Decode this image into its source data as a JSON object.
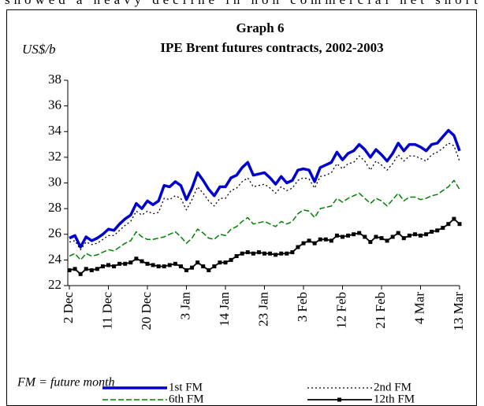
{
  "page_text": "showed a heavy decline in non commercial net short",
  "chart_data": {
    "type": "line",
    "title": "Graph 6",
    "subtitle": "IPE Brent futures contracts, 2002-2003",
    "y_axis_label": "US$/b",
    "note": "FM = future month",
    "grid": false,
    "legend": "bottom",
    "categories": [
      "2 Dec",
      null,
      null,
      null,
      null,
      null,
      null,
      "11 Dec",
      null,
      null,
      null,
      null,
      null,
      null,
      "20 Dec",
      null,
      null,
      null,
      null,
      null,
      null,
      "3 Jan",
      null,
      null,
      null,
      null,
      null,
      null,
      "14 Jan",
      null,
      null,
      null,
      null,
      null,
      null,
      "23 Jan",
      null,
      null,
      null,
      null,
      null,
      null,
      "3 Feb",
      null,
      null,
      null,
      null,
      null,
      null,
      "12 Feb",
      null,
      null,
      null,
      null,
      null,
      null,
      "21 Feb",
      null,
      null,
      null,
      null,
      null,
      null,
      "4 Mar",
      null,
      null,
      null,
      null,
      null,
      null,
      "13 Mar"
    ],
    "ylim": [
      22,
      38
    ],
    "yticks": [
      22,
      24,
      26,
      28,
      30,
      32,
      34,
      36,
      38
    ],
    "series": [
      {
        "name": "1st FM",
        "color": "#0000cc",
        "style": "solid-thick",
        "values": [
          25.7,
          25.9,
          25.0,
          25.8,
          25.5,
          25.7,
          26.0,
          26.4,
          26.3,
          26.8,
          27.2,
          27.5,
          28.4,
          28.0,
          28.6,
          28.3,
          28.6,
          29.8,
          29.7,
          30.1,
          29.8,
          28.7,
          29.6,
          30.8,
          30.2,
          29.5,
          29.0,
          29.7,
          29.7,
          30.4,
          30.6,
          31.2,
          31.6,
          30.6,
          30.7,
          30.8,
          30.4,
          29.9,
          30.5,
          30.0,
          30.2,
          31.0,
          31.1,
          31.0,
          30.1,
          31.2,
          31.4,
          31.6,
          32.4,
          31.8,
          32.3,
          32.5,
          33.0,
          32.6,
          32.0,
          32.6,
          32.2,
          31.7,
          32.3,
          33.1,
          32.5,
          33.0,
          33.0,
          32.8,
          32.5,
          33.0,
          33.1,
          33.6,
          34.1,
          33.7,
          32.5
        ]
      },
      {
        "name": "2nd FM",
        "color": "#000000",
        "style": "dotted",
        "values": [
          25.4,
          25.5,
          24.8,
          25.4,
          25.2,
          25.3,
          25.6,
          25.9,
          25.9,
          26.3,
          26.7,
          27.0,
          27.8,
          27.5,
          27.8,
          27.6,
          27.7,
          28.8,
          28.7,
          29.0,
          28.8,
          27.9,
          28.7,
          29.7,
          29.2,
          28.6,
          28.2,
          28.8,
          28.8,
          29.4,
          29.6,
          30.1,
          30.4,
          29.7,
          29.8,
          29.9,
          29.6,
          29.2,
          29.7,
          29.4,
          29.6,
          30.2,
          30.4,
          30.3,
          29.6,
          30.5,
          30.6,
          30.8,
          31.5,
          31.1,
          31.5,
          31.6,
          32.1,
          31.7,
          31.0,
          31.7,
          31.4,
          31.0,
          31.5,
          32.2,
          31.7,
          32.1,
          32.1,
          31.9,
          31.7,
          32.2,
          32.4,
          32.7,
          33.1,
          32.9,
          31.7
        ]
      },
      {
        "name": "6th FM",
        "color": "#008000",
        "style": "dashed",
        "values": [
          24.3,
          24.5,
          24.0,
          24.5,
          24.3,
          24.4,
          24.6,
          24.8,
          24.7,
          25.0,
          25.3,
          25.5,
          26.2,
          25.8,
          25.6,
          25.6,
          25.7,
          25.8,
          26.0,
          26.2,
          25.8,
          25.3,
          25.7,
          26.4,
          26.1,
          25.7,
          25.6,
          26.0,
          25.9,
          26.4,
          26.6,
          27.0,
          27.3,
          26.8,
          26.9,
          27.0,
          26.8,
          26.6,
          27.0,
          26.8,
          27.0,
          27.6,
          27.9,
          27.8,
          27.3,
          28.0,
          28.1,
          28.2,
          28.8,
          28.5,
          28.8,
          29.0,
          29.2,
          28.8,
          28.4,
          28.8,
          28.6,
          28.2,
          28.7,
          29.2,
          28.6,
          28.9,
          28.9,
          28.7,
          28.8,
          29.0,
          29.1,
          29.4,
          29.7,
          30.2,
          29.5
        ]
      },
      {
        "name": "12th FM",
        "color": "#000000",
        "style": "square-markers",
        "values": [
          23.2,
          23.3,
          22.9,
          23.3,
          23.2,
          23.3,
          23.5,
          23.6,
          23.5,
          23.7,
          23.7,
          23.8,
          24.1,
          23.9,
          23.7,
          23.6,
          23.5,
          23.5,
          23.6,
          23.7,
          23.5,
          23.2,
          23.4,
          23.8,
          23.5,
          23.2,
          23.5,
          23.8,
          23.8,
          24.0,
          24.3,
          24.5,
          24.6,
          24.5,
          24.6,
          24.5,
          24.5,
          24.4,
          24.5,
          24.5,
          24.6,
          25.0,
          25.3,
          25.5,
          25.3,
          25.6,
          25.6,
          25.5,
          25.9,
          25.8,
          25.9,
          26.0,
          26.1,
          25.8,
          25.4,
          25.8,
          25.7,
          25.5,
          25.8,
          26.1,
          25.7,
          25.9,
          26.0,
          25.9,
          26.0,
          26.2,
          26.3,
          26.5,
          26.8,
          27.2,
          26.8
        ]
      }
    ]
  }
}
